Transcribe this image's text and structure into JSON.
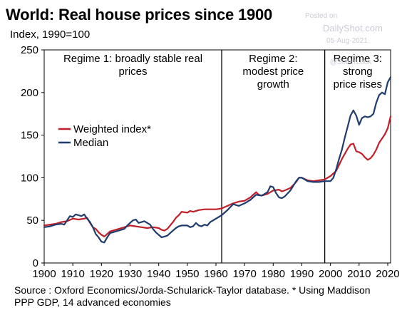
{
  "title": "World: Real house prices since 1900",
  "subtitle": "Index, 1990=100",
  "watermark": {
    "posted": "Posted on",
    "site": "DailyShot.com",
    "date": "05-Aug-2021",
    "handle": "@SoberLook"
  },
  "source": "Source : Oxford Economics/Jorda-Schularick-Taylor database.  * Using Maddison PPP GDP, 14 advanced economies",
  "chart_data": {
    "type": "line",
    "xlim": [
      1900,
      2021
    ],
    "ylim": [
      0,
      250
    ],
    "x_ticks": [
      1900,
      1910,
      1920,
      1930,
      1940,
      1950,
      1960,
      1970,
      1980,
      1990,
      2000,
      2010,
      2020
    ],
    "y_ticks": [
      0,
      50,
      100,
      150,
      200,
      250
    ],
    "grid": false,
    "legend": "left",
    "regime_dividers": [
      1962,
      1998
    ],
    "regimes": [
      {
        "lines": [
          "Regime 1: broadly stable real",
          "prices"
        ],
        "x_from": 1900,
        "x_to": 1962
      },
      {
        "lines": [
          "Regime 2:",
          "modest price",
          "growth"
        ],
        "x_from": 1962,
        "x_to": 1998
      },
      {
        "lines": [
          "Regime 3:",
          "strong",
          "price rises"
        ],
        "x_from": 1998,
        "x_to": 2021
      }
    ],
    "series": [
      {
        "name": "Weighted index*",
        "color": "#c0202a",
        "points": [
          [
            1900,
            44
          ],
          [
            1902,
            45
          ],
          [
            1904,
            46
          ],
          [
            1906,
            48
          ],
          [
            1908,
            49
          ],
          [
            1910,
            52
          ],
          [
            1912,
            51
          ],
          [
            1914,
            52
          ],
          [
            1915,
            53
          ],
          [
            1916,
            47
          ],
          [
            1917,
            42
          ],
          [
            1918,
            40
          ],
          [
            1919,
            36
          ],
          [
            1920,
            33
          ],
          [
            1921,
            31
          ],
          [
            1922,
            34
          ],
          [
            1923,
            37
          ],
          [
            1924,
            38
          ],
          [
            1926,
            40
          ],
          [
            1928,
            42
          ],
          [
            1930,
            44
          ],
          [
            1932,
            43
          ],
          [
            1934,
            42
          ],
          [
            1936,
            41
          ],
          [
            1938,
            42
          ],
          [
            1940,
            41
          ],
          [
            1941,
            39
          ],
          [
            1942,
            38
          ],
          [
            1943,
            40
          ],
          [
            1944,
            44
          ],
          [
            1945,
            48
          ],
          [
            1946,
            53
          ],
          [
            1947,
            56
          ],
          [
            1948,
            60
          ],
          [
            1950,
            59
          ],
          [
            1951,
            61
          ],
          [
            1952,
            60
          ],
          [
            1954,
            62
          ],
          [
            1956,
            63
          ],
          [
            1958,
            63
          ],
          [
            1960,
            63
          ],
          [
            1962,
            64
          ],
          [
            1964,
            67
          ],
          [
            1966,
            70
          ],
          [
            1968,
            72
          ],
          [
            1970,
            73
          ],
          [
            1972,
            77
          ],
          [
            1974,
            83
          ],
          [
            1975,
            80
          ],
          [
            1976,
            79
          ],
          [
            1978,
            81
          ],
          [
            1980,
            85
          ],
          [
            1982,
            86
          ],
          [
            1983,
            84
          ],
          [
            1984,
            85
          ],
          [
            1986,
            88
          ],
          [
            1988,
            95
          ],
          [
            1989,
            100
          ],
          [
            1990,
            100
          ],
          [
            1992,
            97
          ],
          [
            1994,
            96
          ],
          [
            1996,
            97
          ],
          [
            1998,
            98
          ],
          [
            2000,
            102
          ],
          [
            2002,
            108
          ],
          [
            2004,
            122
          ],
          [
            2006,
            134
          ],
          [
            2007,
            139
          ],
          [
            2008,
            140
          ],
          [
            2009,
            131
          ],
          [
            2010,
            130
          ],
          [
            2011,
            128
          ],
          [
            2012,
            124
          ],
          [
            2013,
            121
          ],
          [
            2014,
            123
          ],
          [
            2015,
            127
          ],
          [
            2016,
            133
          ],
          [
            2017,
            141
          ],
          [
            2018,
            146
          ],
          [
            2019,
            151
          ],
          [
            2020,
            158
          ],
          [
            2021,
            172
          ]
        ]
      },
      {
        "name": "Median",
        "color": "#1f3c6e",
        "points": [
          [
            1900,
            42
          ],
          [
            1902,
            43
          ],
          [
            1904,
            45
          ],
          [
            1906,
            46
          ],
          [
            1907,
            45
          ],
          [
            1908,
            50
          ],
          [
            1909,
            55
          ],
          [
            1910,
            54
          ],
          [
            1911,
            57
          ],
          [
            1912,
            56
          ],
          [
            1913,
            55
          ],
          [
            1914,
            57
          ],
          [
            1915,
            52
          ],
          [
            1916,
            48
          ],
          [
            1917,
            42
          ],
          [
            1918,
            34
          ],
          [
            1919,
            30
          ],
          [
            1920,
            25
          ],
          [
            1921,
            24
          ],
          [
            1922,
            30
          ],
          [
            1923,
            35
          ],
          [
            1924,
            36
          ],
          [
            1926,
            38
          ],
          [
            1928,
            40
          ],
          [
            1929,
            44
          ],
          [
            1930,
            47
          ],
          [
            1931,
            50
          ],
          [
            1932,
            51
          ],
          [
            1933,
            47
          ],
          [
            1934,
            48
          ],
          [
            1935,
            49
          ],
          [
            1936,
            47
          ],
          [
            1937,
            45
          ],
          [
            1938,
            40
          ],
          [
            1939,
            36
          ],
          [
            1940,
            33
          ],
          [
            1941,
            30
          ],
          [
            1942,
            31
          ],
          [
            1943,
            32
          ],
          [
            1944,
            35
          ],
          [
            1945,
            38
          ],
          [
            1946,
            41
          ],
          [
            1947,
            43
          ],
          [
            1948,
            44
          ],
          [
            1950,
            44
          ],
          [
            1951,
            42
          ],
          [
            1952,
            43
          ],
          [
            1953,
            47
          ],
          [
            1954,
            44
          ],
          [
            1955,
            43
          ],
          [
            1956,
            45
          ],
          [
            1957,
            44
          ],
          [
            1958,
            48
          ],
          [
            1960,
            52
          ],
          [
            1962,
            56
          ],
          [
            1964,
            62
          ],
          [
            1966,
            69
          ],
          [
            1968,
            67
          ],
          [
            1970,
            70
          ],
          [
            1972,
            74
          ],
          [
            1974,
            80
          ],
          [
            1976,
            79
          ],
          [
            1978,
            83
          ],
          [
            1979,
            90
          ],
          [
            1980,
            89
          ],
          [
            1981,
            82
          ],
          [
            1982,
            77
          ],
          [
            1983,
            76
          ],
          [
            1984,
            78
          ],
          [
            1986,
            85
          ],
          [
            1988,
            96
          ],
          [
            1989,
            100
          ],
          [
            1990,
            100
          ],
          [
            1992,
            96
          ],
          [
            1994,
            95
          ],
          [
            1996,
            95
          ],
          [
            1998,
            96
          ],
          [
            2000,
            96
          ],
          [
            2001,
            100
          ],
          [
            2002,
            110
          ],
          [
            2003,
            122
          ],
          [
            2004,
            133
          ],
          [
            2005,
            147
          ],
          [
            2006,
            160
          ],
          [
            2007,
            173
          ],
          [
            2008,
            179
          ],
          [
            2009,
            173
          ],
          [
            2010,
            162
          ],
          [
            2011,
            170
          ],
          [
            2012,
            172
          ],
          [
            2013,
            171
          ],
          [
            2014,
            172
          ],
          [
            2015,
            175
          ],
          [
            2016,
            188
          ],
          [
            2017,
            197
          ],
          [
            2018,
            200
          ],
          [
            2019,
            198
          ],
          [
            2020,
            212
          ],
          [
            2021,
            218
          ]
        ]
      }
    ]
  }
}
